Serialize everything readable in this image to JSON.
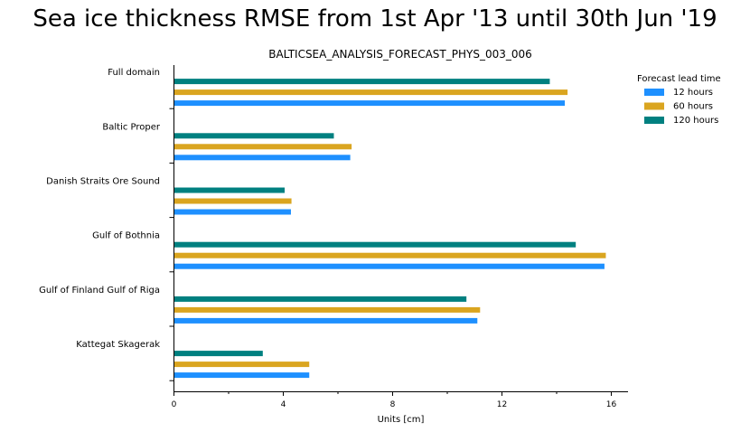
{
  "figure": {
    "suptitle": "Sea ice thickness RMSE from 1st Apr '13 until 30th Jun '19"
  },
  "chart_data": {
    "type": "bar",
    "orientation": "horizontal",
    "title": "BALTICSEA_ANALYSIS_FORECAST_PHYS_003_006",
    "xlabel": "Units [cm]",
    "ylabel": "",
    "xlim": [
      0,
      16.7
    ],
    "xticks": [
      0,
      4,
      8,
      12,
      16
    ],
    "categories": [
      "Full domain",
      "Baltic Proper",
      "Danish Straits Ore Sound",
      "Gulf of Bothnia",
      "Gulf of Finland Gulf of Riga",
      "Kattegat Skagerak"
    ],
    "series": [
      {
        "name": "12 hours",
        "color": "#1e90ff",
        "values": [
          14.3,
          6.45,
          4.28,
          15.75,
          11.1,
          4.95
        ]
      },
      {
        "name": "60 hours",
        "color": "#daa520",
        "values": [
          14.4,
          6.5,
          4.3,
          15.8,
          11.2,
          4.95
        ]
      },
      {
        "name": "120 hours",
        "color": "#008080",
        "values": [
          13.75,
          5.85,
          4.05,
          14.7,
          10.7,
          3.25
        ]
      }
    ],
    "legend": {
      "title": "Forecast lead time",
      "position": "top-right",
      "frame": false
    },
    "grid": false
  }
}
